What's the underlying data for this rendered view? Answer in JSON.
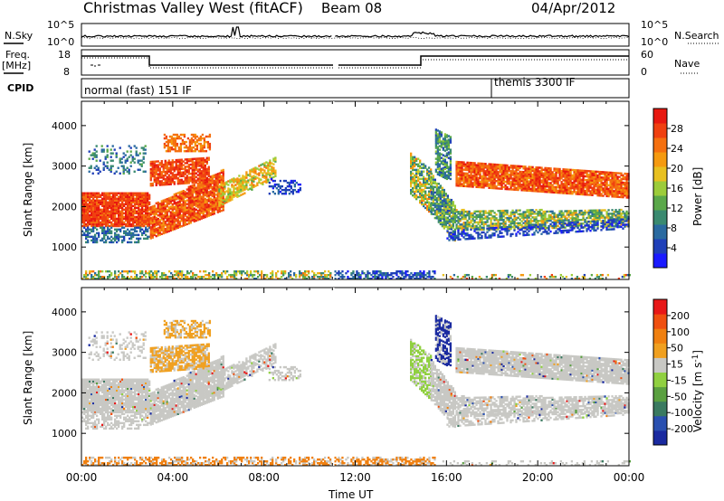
{
  "header": {
    "title": "Christmas Valley West (fitACF)",
    "beam": "Beam 08",
    "date": "04/Apr/2012"
  },
  "labels": {
    "nsky": "N.Sky",
    "nsearch": "N.Search",
    "freq": "Freq.",
    "freq_unit": "[MHz]",
    "nave": "Nave",
    "cpid": "CPID",
    "nsky_top": "10^5",
    "nsky_bot": "10^0",
    "nsearch_top": "10^5",
    "nsearch_bot": "10^0",
    "freq_top": "18",
    "freq_bot": "8",
    "nave_top": "60",
    "nave_bot": "0"
  },
  "cpid": {
    "normal": "normal (fast) 151 IF",
    "themis": "themis 3300 IF"
  },
  "colors": {
    "power_scale": [
      "#1a1aff",
      "#1f3fb8",
      "#2a6aa0",
      "#3a8a70",
      "#5aa84a",
      "#9ccc3a",
      "#e8c020",
      "#f59a10",
      "#f57010",
      "#f04010",
      "#e81810"
    ],
    "velocity_scale": [
      "#1a2aa0",
      "#2a50b0",
      "#3a7a60",
      "#5aa040",
      "#90d040",
      "#c8c8c4",
      "#f0a020",
      "#f08010",
      "#f05010",
      "#e81818"
    ]
  },
  "chart_data": [
    {
      "type": "heatmap",
      "title": "Power",
      "xlabel": "Time UT",
      "ylabel": "Slant Range [km]",
      "x_ticks": [
        "00:00",
        "04:00",
        "08:00",
        "12:00",
        "16:00",
        "20:00",
        "00:00"
      ],
      "y_ticks": [
        1000,
        2000,
        3000,
        4000
      ],
      "ylim": [
        200,
        4600
      ],
      "colorbar": {
        "label": "Power [dB]",
        "ticks": [
          4,
          8,
          12,
          16,
          20,
          24,
          28
        ]
      }
    },
    {
      "type": "heatmap",
      "title": "Velocity",
      "xlabel": "Time UT",
      "ylabel": "Slant Range [km]",
      "x_ticks": [
        "00:00",
        "04:00",
        "08:00",
        "12:00",
        "16:00",
        "20:00",
        "00:00"
      ],
      "y_ticks": [
        1000,
        2000,
        3000,
        4000
      ],
      "ylim": [
        200,
        4600
      ],
      "colorbar": {
        "label": "Velocity [m s^-1]",
        "ticks": [
          "200",
          "100",
          "50",
          "15",
          "-15",
          "-50",
          "-100",
          "-200"
        ]
      }
    }
  ]
}
